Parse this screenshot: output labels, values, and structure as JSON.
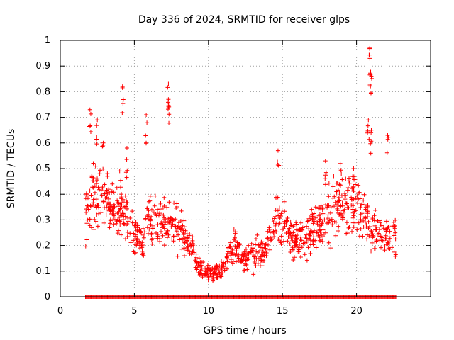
{
  "chart_data": {
    "type": "scatter",
    "title": "Day 336 of 2024, SRMTID for receiver glps",
    "xlabel": "GPS time / hours",
    "ylabel": "SRMTID / TECUs",
    "xlim": [
      0,
      25
    ],
    "ylim": [
      0,
      1
    ],
    "xticks": [
      "0",
      "5",
      "10",
      "15",
      "20"
    ],
    "yticks": [
      "0",
      "0.1",
      "0.2",
      "0.3",
      "0.4",
      "0.5",
      "0.6",
      "0.7",
      "0.8",
      "0.9",
      "1"
    ],
    "grid": true,
    "marker": "+",
    "color": "#ff0000",
    "series": [
      {
        "name": "SRMTID",
        "profile": [
          [
            1.7,
            0.3
          ],
          [
            2.2,
            0.38
          ],
          [
            2.8,
            0.4
          ],
          [
            3.5,
            0.35
          ],
          [
            4.2,
            0.33
          ],
          [
            5.0,
            0.26
          ],
          [
            5.5,
            0.2
          ],
          [
            6.0,
            0.32
          ],
          [
            6.8,
            0.3
          ],
          [
            7.6,
            0.28
          ],
          [
            8.2,
            0.25
          ],
          [
            8.8,
            0.2
          ],
          [
            9.3,
            0.12
          ],
          [
            9.8,
            0.1
          ],
          [
            10.3,
            0.09
          ],
          [
            10.8,
            0.1
          ],
          [
            11.3,
            0.15
          ],
          [
            11.8,
            0.2
          ],
          [
            12.3,
            0.16
          ],
          [
            12.8,
            0.16
          ],
          [
            13.3,
            0.17
          ],
          [
            13.8,
            0.18
          ],
          [
            14.3,
            0.28
          ],
          [
            14.8,
            0.3
          ],
          [
            15.3,
            0.25
          ],
          [
            15.8,
            0.22
          ],
          [
            16.4,
            0.22
          ],
          [
            17.0,
            0.26
          ],
          [
            17.5,
            0.28
          ],
          [
            18.0,
            0.3
          ],
          [
            18.6,
            0.35
          ],
          [
            19.2,
            0.36
          ],
          [
            19.8,
            0.38
          ],
          [
            20.4,
            0.33
          ],
          [
            20.9,
            0.28
          ],
          [
            21.5,
            0.25
          ],
          [
            22.1,
            0.22
          ],
          [
            22.7,
            0.22
          ]
        ],
        "spikes": [
          [
            2.0,
            0.73
          ],
          [
            2.5,
            0.69
          ],
          [
            2.9,
            0.6
          ],
          [
            4.2,
            0.82
          ],
          [
            4.5,
            0.58
          ],
          [
            5.8,
            0.71
          ],
          [
            7.3,
            0.83
          ],
          [
            7.3,
            0.77
          ],
          [
            14.7,
            0.57
          ],
          [
            17.9,
            0.53
          ],
          [
            18.9,
            0.52
          ],
          [
            19.8,
            0.5
          ],
          [
            20.9,
            0.97
          ],
          [
            20.9,
            0.93
          ],
          [
            21.0,
            0.86
          ],
          [
            20.8,
            0.69
          ],
          [
            21.0,
            0.65
          ],
          [
            22.1,
            0.63
          ]
        ],
        "zero_range": [
          1.7,
          22.7
        ]
      }
    ]
  }
}
